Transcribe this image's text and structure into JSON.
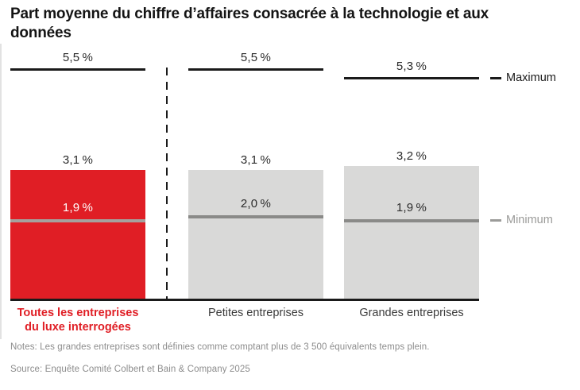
{
  "title": "Part moyenne du chiffre d’affaires consacrée à la technologie et aux données",
  "chart_data": {
    "type": "bar",
    "title": "Part moyenne du chiffre d’affaires consacrée à la technologie et aux données",
    "unit": "%",
    "ylim": [
      0,
      6
    ],
    "grid": false,
    "legend_position": "right",
    "legend": {
      "maximum": "Maximum",
      "minimum": "Minimum"
    },
    "categories": [
      "Toutes les entreprises du luxe interrogées",
      "Petites entreprises",
      "Grandes entreprises"
    ],
    "groups": [
      {
        "category_line1": "Toutes les entreprises",
        "category_line2": "du luxe interrogées",
        "maximum": 5.5,
        "average": 3.1,
        "minimum": 1.9,
        "maximum_label": "5,5 %",
        "average_label": "3,1 %",
        "minimum_label": "1,9 %",
        "bar_color": "#e01e25",
        "highlighted": true
      },
      {
        "category_line1": "Petites entreprises",
        "maximum": 5.5,
        "average": 3.1,
        "minimum": 2.0,
        "maximum_label": "5,5 %",
        "average_label": "3,1 %",
        "minimum_label": "2,0 %",
        "bar_color": "#d9d9d8",
        "highlighted": false
      },
      {
        "category_line1": "Grandes entreprises",
        "maximum": 5.3,
        "average": 3.2,
        "minimum": 1.9,
        "maximum_label": "5,3 %",
        "average_label": "3,2 %",
        "minimum_label": "1,9 %",
        "bar_color": "#d9d9d8",
        "highlighted": false
      }
    ]
  },
  "footer": {
    "notes": "Notes: Les grandes entreprises sont définies comme comptant plus de 3 500 équivalents temps plein.",
    "source": "Source: Enquête Comité Colbert et Bain & Company 2025"
  },
  "colors": {
    "highlight_red": "#e01e25",
    "bar_gray": "#d9d9d8",
    "maximum_line": "#1a1a1a",
    "minimum_line": "#8a8a88",
    "minimum_line_on_red": "#a5a19e",
    "legend_minimum_text": "#9b9b99",
    "footnote_text": "#8c8c8c"
  }
}
